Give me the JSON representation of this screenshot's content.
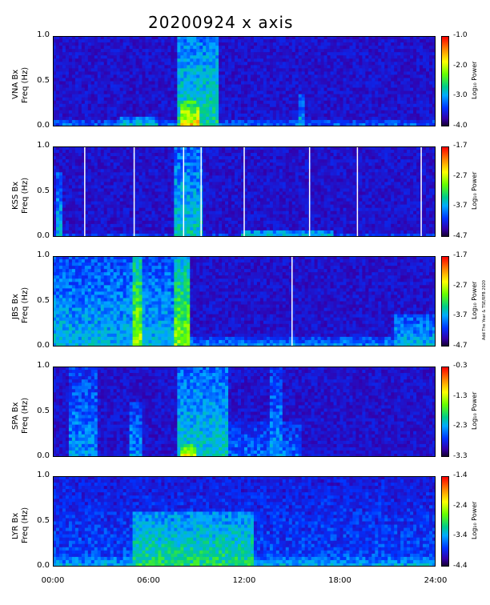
{
  "chart_data": {
    "type": "heatmap",
    "title": "20200924  x axis",
    "credit": "Add The Year & TSE/RFB 2020",
    "xlabel": "",
    "x_ticks": [
      "00:00",
      "06:00",
      "12:00",
      "18:00",
      "24:00"
    ],
    "x_range_hours": [
      0,
      24
    ],
    "panels": [
      {
        "station": "VNA Bx",
        "ylabel_top": "VNA Bx",
        "ylabel_bottom": "Freq (Hz)",
        "y_ticks": [
          "1.0",
          "0.5",
          "0.0"
        ],
        "ylim": [
          0,
          1
        ],
        "colorbar_ticks": [
          "-1.0",
          "-2.0",
          "-3.0",
          "-4.0"
        ],
        "colorbar_range": [
          -4.0,
          -1.0
        ],
        "colorbar_label": "Log₁₀ Power",
        "data_gaps_hours": [],
        "activity": [
          {
            "start": 0.0,
            "end": 24.0,
            "fmax": 0.08,
            "level": 0.35
          },
          {
            "start": 4.3,
            "end": 6.6,
            "fmax": 0.1,
            "level": 0.5
          },
          {
            "start": 7.9,
            "end": 10.3,
            "fmax": 1.0,
            "level": 0.55
          },
          {
            "start": 8.1,
            "end": 9.1,
            "fmax": 0.3,
            "level": 0.85
          },
          {
            "start": 15.3,
            "end": 15.7,
            "fmax": 0.35,
            "level": 0.45
          }
        ]
      },
      {
        "station": "KSS Bx",
        "ylabel_top": "KSS Bx",
        "ylabel_bottom": "Freq (Hz)",
        "y_ticks": [
          "1.0",
          "0.5",
          "0.0"
        ],
        "ylim": [
          0,
          1
        ],
        "colorbar_ticks": [
          "-1.7",
          "-2.7",
          "-3.7",
          "-4.7"
        ],
        "colorbar_range": [
          -4.7,
          -1.7
        ],
        "colorbar_label": "Log₁₀ Power",
        "data_gaps_hours": [
          2.0,
          5.1,
          8.2,
          9.3,
          12.0,
          16.1,
          19.1,
          23.1
        ],
        "activity": [
          {
            "start": 0.0,
            "end": 24.0,
            "fmax": 0.05,
            "level": 0.3
          },
          {
            "start": 0.3,
            "end": 0.6,
            "fmax": 0.7,
            "level": 0.45
          },
          {
            "start": 7.6,
            "end": 9.4,
            "fmax": 1.0,
            "level": 0.5
          },
          {
            "start": 11.8,
            "end": 17.5,
            "fmax": 0.08,
            "level": 0.5
          }
        ]
      },
      {
        "station": "JBS Bx",
        "ylabel_top": "JBS Bx",
        "ylabel_bottom": "Freq (Hz)",
        "y_ticks": [
          "1.0",
          "0.5",
          "0.0"
        ],
        "ylim": [
          0,
          1
        ],
        "colorbar_ticks": [
          "-1.7",
          "-2.7",
          "-3.7",
          "-4.7"
        ],
        "colorbar_range": [
          -4.7,
          -1.7
        ],
        "colorbar_label": "Log₁₀ Power",
        "data_gaps_hours": [
          15.0
        ],
        "activity": [
          {
            "start": 0.0,
            "end": 8.0,
            "fmax": 1.0,
            "level": 0.45
          },
          {
            "start": 5.0,
            "end": 5.6,
            "fmax": 1.0,
            "level": 0.75
          },
          {
            "start": 7.6,
            "end": 8.6,
            "fmax": 1.0,
            "level": 0.7
          },
          {
            "start": 0.0,
            "end": 24.0,
            "fmax": 0.1,
            "level": 0.4
          },
          {
            "start": 21.5,
            "end": 24.0,
            "fmax": 0.35,
            "level": 0.45
          }
        ]
      },
      {
        "station": "SPA Bx",
        "ylabel_top": "SPA Bx",
        "ylabel_bottom": "Freq (Hz)",
        "y_ticks": [
          "1.0",
          "0.5",
          "0.0"
        ],
        "ylim": [
          0,
          1
        ],
        "colorbar_ticks": [
          "-0.3",
          "-1.3",
          "-2.3",
          "-3.3"
        ],
        "colorbar_range": [
          -3.3,
          -0.3
        ],
        "colorbar_label": "Log₁₀ Power",
        "data_gaps_hours": [],
        "activity": [
          {
            "start": 0.0,
            "end": 24.0,
            "fmax": 0.05,
            "level": 0.15
          },
          {
            "start": 0.9,
            "end": 2.8,
            "fmax": 1.0,
            "level": 0.4
          },
          {
            "start": 4.8,
            "end": 5.6,
            "fmax": 0.6,
            "level": 0.4
          },
          {
            "start": 7.8,
            "end": 11.0,
            "fmax": 1.0,
            "level": 0.5
          },
          {
            "start": 8.0,
            "end": 9.0,
            "fmax": 0.15,
            "level": 0.8
          },
          {
            "start": 11.0,
            "end": 15.5,
            "fmax": 0.4,
            "level": 0.35
          },
          {
            "start": 13.6,
            "end": 14.4,
            "fmax": 1.0,
            "level": 0.4
          }
        ]
      },
      {
        "station": "LYR Bx",
        "ylabel_top": "LYR Bx",
        "ylabel_bottom": "Freq (Hz)",
        "y_ticks": [
          "1.0",
          "0.5",
          "0.0"
        ],
        "ylim": [
          0,
          1
        ],
        "colorbar_ticks": [
          "-1.4",
          "-2.4",
          "-3.4",
          "-4.4"
        ],
        "colorbar_range": [
          -4.4,
          -1.4
        ],
        "colorbar_label": "Log₁₀ Power",
        "data_gaps_hours": [],
        "activity": [
          {
            "start": 0.0,
            "end": 24.0,
            "fmax": 1.0,
            "level": 0.3
          },
          {
            "start": 0.0,
            "end": 24.0,
            "fmax": 0.12,
            "level": 0.45
          },
          {
            "start": 5.0,
            "end": 12.5,
            "fmax": 0.6,
            "level": 0.58
          }
        ]
      }
    ]
  }
}
